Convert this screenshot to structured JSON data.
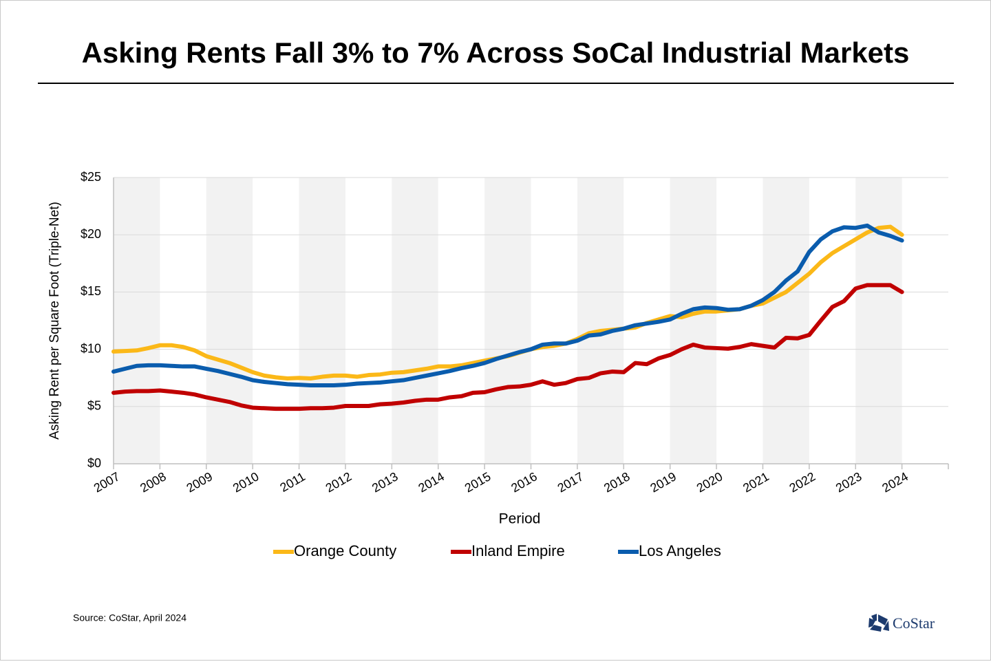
{
  "chart_data": {
    "type": "line",
    "title": "Asking Rents Fall 3% to 7% Across SoCal Industrial Markets",
    "x_label": "Period",
    "y_label": "Asking Rent per Square Foot (Triple-Net)",
    "source": "Source: CoStar, April 2024",
    "logo": "CoStar",
    "xlim": [
      2007,
      2025
    ],
    "xticks": [
      2007,
      2008,
      2009,
      2010,
      2011,
      2012,
      2013,
      2014,
      2015,
      2016,
      2017,
      2018,
      2019,
      2020,
      2021,
      2022,
      2023,
      2024
    ],
    "ylim": [
      0,
      25
    ],
    "yticks": [
      {
        "value": 0,
        "label": "$0"
      },
      {
        "value": 5,
        "label": "$5"
      },
      {
        "value": 10,
        "label": "$10"
      },
      {
        "value": 15,
        "label": "$15"
      },
      {
        "value": 20,
        "label": "$20"
      },
      {
        "value": 25,
        "label": "$25"
      }
    ],
    "grid": true,
    "legend": "bottom",
    "x": [
      2007,
      2007.25,
      2007.5,
      2007.75,
      2008,
      2008.25,
      2008.5,
      2008.75,
      2009,
      2009.25,
      2009.5,
      2009.75,
      2010,
      2010.25,
      2010.5,
      2010.75,
      2011,
      2011.25,
      2011.5,
      2011.75,
      2012,
      2012.25,
      2012.5,
      2012.75,
      2013,
      2013.25,
      2013.5,
      2013.75,
      2014,
      2014.25,
      2014.5,
      2014.75,
      2015,
      2015.25,
      2015.5,
      2015.75,
      2016,
      2016.25,
      2016.5,
      2016.75,
      2017,
      2017.25,
      2017.5,
      2017.75,
      2018,
      2018.25,
      2018.5,
      2018.75,
      2019,
      2019.25,
      2019.5,
      2019.75,
      2020,
      2020.25,
      2020.5,
      2020.75,
      2021,
      2021.25,
      2021.5,
      2021.75,
      2022,
      2022.25,
      2022.5,
      2022.75,
      2023,
      2023.25,
      2023.5,
      2023.75,
      2024
    ],
    "series": [
      {
        "name": "Orange County",
        "color": "#fbb818",
        "values": [
          9.8,
          9.85,
          9.9,
          10.1,
          10.35,
          10.35,
          10.2,
          9.9,
          9.4,
          9.1,
          8.8,
          8.4,
          8.0,
          7.7,
          7.55,
          7.45,
          7.5,
          7.45,
          7.6,
          7.7,
          7.7,
          7.6,
          7.75,
          7.8,
          7.95,
          8.0,
          8.15,
          8.3,
          8.5,
          8.5,
          8.6,
          8.8,
          9.0,
          9.2,
          9.4,
          9.7,
          10.0,
          10.2,
          10.3,
          10.5,
          10.9,
          11.4,
          11.6,
          11.7,
          11.8,
          11.9,
          12.3,
          12.6,
          12.9,
          12.8,
          13.1,
          13.3,
          13.3,
          13.4,
          13.5,
          13.8,
          14.0,
          14.5,
          15.0,
          15.8,
          16.6,
          17.6,
          18.4,
          19.0,
          19.6,
          20.2,
          20.6,
          20.7,
          20.0
        ]
      },
      {
        "name": "Inland Empire",
        "color": "#c00000",
        "values": [
          6.2,
          6.3,
          6.35,
          6.35,
          6.4,
          6.3,
          6.2,
          6.05,
          5.8,
          5.6,
          5.4,
          5.1,
          4.9,
          4.85,
          4.8,
          4.8,
          4.8,
          4.85,
          4.85,
          4.9,
          5.05,
          5.05,
          5.05,
          5.2,
          5.25,
          5.35,
          5.5,
          5.6,
          5.6,
          5.8,
          5.9,
          6.2,
          6.25,
          6.5,
          6.7,
          6.75,
          6.9,
          7.2,
          6.9,
          7.05,
          7.4,
          7.5,
          7.9,
          8.05,
          8.0,
          8.8,
          8.7,
          9.2,
          9.5,
          10.0,
          10.4,
          10.15,
          10.1,
          10.05,
          10.2,
          10.45,
          10.3,
          10.15,
          11.0,
          10.95,
          11.25,
          12.5,
          13.7,
          14.2,
          15.3,
          15.6,
          15.6,
          15.6,
          15.0
        ]
      },
      {
        "name": "Los Angeles",
        "color": "#0a5cad",
        "values": [
          8.05,
          8.3,
          8.55,
          8.6,
          8.6,
          8.55,
          8.5,
          8.5,
          8.3,
          8.1,
          7.85,
          7.6,
          7.3,
          7.15,
          7.05,
          6.95,
          6.9,
          6.85,
          6.85,
          6.85,
          6.9,
          7.0,
          7.05,
          7.1,
          7.2,
          7.3,
          7.5,
          7.7,
          7.9,
          8.1,
          8.35,
          8.55,
          8.8,
          9.15,
          9.45,
          9.75,
          10.0,
          10.4,
          10.5,
          10.5,
          10.75,
          11.2,
          11.3,
          11.6,
          11.8,
          12.1,
          12.25,
          12.4,
          12.6,
          13.1,
          13.5,
          13.65,
          13.6,
          13.45,
          13.5,
          13.8,
          14.3,
          15.0,
          16.0,
          16.8,
          18.5,
          19.6,
          20.3,
          20.65,
          20.6,
          20.8,
          20.2,
          19.9,
          19.5
        ]
      }
    ]
  }
}
